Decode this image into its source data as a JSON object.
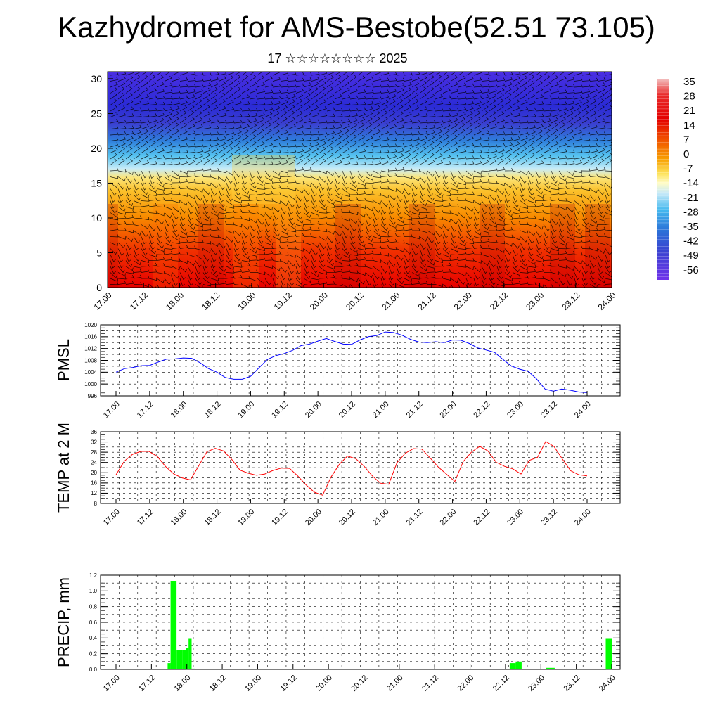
{
  "title": "Kazhydromet for AMS-Bestobe(52.51 73.105)",
  "subtitle": "17 ☆☆☆☆☆☆☆☆ 2025",
  "colors": {
    "pmsl_line": "#0000ff",
    "temp_line": "#ff0000",
    "precip_bar": "#00ff00",
    "colorbar": [
      "#f3c1c1",
      "#e92a2a",
      "#e40000",
      "#ee3e00",
      "#f57a00",
      "#fbb218",
      "#fee95a",
      "#fffcc8",
      "#c6e9f8",
      "#55c1f0",
      "#23a5e6",
      "#2b74d8",
      "#3a42d1",
      "#4a20d8",
      "#6a2de8"
    ]
  },
  "chart_data": [
    {
      "type": "heatmap",
      "title": "Kazhydromet for AMS-Bestobe(52.51 73.105)",
      "subtitle": "17 ☆☆☆☆☆☆☆☆ 2025",
      "x_ticks": [
        "17.00",
        "17.12",
        "18.00",
        "18.12",
        "19.00",
        "19.12",
        "20.00",
        "20.12",
        "21.00",
        "21.12",
        "22.00",
        "22.12",
        "23.00",
        "23.12",
        "24.00"
      ],
      "y_ticks": [
        0,
        5,
        10,
        15,
        20,
        25,
        30
      ],
      "ylim": [
        0,
        31
      ],
      "colorbar_levels": [
        35,
        28,
        21,
        14,
        7,
        0,
        -7,
        -14,
        -21,
        -28,
        -35,
        -42,
        -49,
        -56
      ],
      "overlay": "wind barbs"
    },
    {
      "type": "line",
      "ylabel": "PMSL",
      "x_ticks": [
        "17.00",
        "17.12",
        "18.00",
        "18.12",
        "19.00",
        "19.12",
        "20.00",
        "20.12",
        "21.00",
        "21.12",
        "22.00",
        "22.12",
        "23.00",
        "23.12",
        "24.00"
      ],
      "y_ticks": [
        996,
        1000,
        1004,
        1008,
        1012,
        1016,
        1020
      ],
      "ylim": [
        996,
        1020
      ],
      "grid": true,
      "values": [
        1004,
        1005.2,
        1005.6,
        1006.2,
        1006.3,
        1007.4,
        1008.4,
        1008.5,
        1008.8,
        1008.7,
        1007.2,
        1005.2,
        1004,
        1002.2,
        1001.6,
        1001.6,
        1002.6,
        1005.5,
        1008.3,
        1009.6,
        1010.3,
        1011.4,
        1013,
        1013.5,
        1014.5,
        1015.4,
        1014.4,
        1013.5,
        1013.4,
        1014.9,
        1016,
        1016.4,
        1017.6,
        1017.4,
        1016.5,
        1015.1,
        1014.2,
        1014,
        1014.3,
        1014,
        1014.9,
        1014.8,
        1013.7,
        1012.2,
        1011.5,
        1010.7,
        1008.3,
        1006.1,
        1005,
        1004.3,
        1001.7,
        998.3,
        997.6,
        998.3,
        997.9,
        997.3,
        997.1
      ]
    },
    {
      "type": "line",
      "ylabel": "TEMP at 2 M",
      "x_ticks": [
        "17.00",
        "17.12",
        "18.00",
        "18.12",
        "19.00",
        "19.12",
        "20.00",
        "20.12",
        "21.00",
        "21.12",
        "22.00",
        "22.12",
        "23.00",
        "23.12",
        "24.00"
      ],
      "y_ticks": [
        8,
        12,
        16,
        20,
        24,
        28,
        32,
        36
      ],
      "ylim": [
        8,
        36
      ],
      "grid": true,
      "values": [
        19.2,
        24.5,
        27.2,
        28.3,
        28.3,
        26.3,
        22.4,
        19.5,
        18,
        17.2,
        22.6,
        28.2,
        29.5,
        28.5,
        25.2,
        21,
        19.8,
        19,
        19.5,
        20.9,
        21.8,
        21.7,
        18.7,
        15.2,
        12.4,
        11.2,
        18.2,
        23.2,
        26.5,
        25.5,
        22.6,
        18.8,
        15.9,
        15.5,
        23.9,
        27.6,
        29.4,
        29.2,
        25.8,
        22.2,
        19.4,
        16.6,
        24.3,
        28,
        30.3,
        28.5,
        24.1,
        22.5,
        21.5,
        19.5,
        24.8,
        26,
        32.2,
        30.2,
        25.4,
        20.8,
        19.2,
        18.8
      ]
    },
    {
      "type": "bar",
      "ylabel": "PRECIP, mm",
      "x_ticks": [
        "17.00",
        "17.12",
        "18.00",
        "18.12",
        "19.00",
        "19.12",
        "20.00",
        "20.12",
        "21.00",
        "21.12",
        "22.00",
        "22.12",
        "23.00",
        "23.12",
        "24.00"
      ],
      "y_ticks": [
        0.0,
        0.2,
        0.4,
        0.6,
        0.8,
        1.0,
        1.2
      ],
      "ylim": [
        0,
        1.2
      ],
      "grid": true,
      "bars": [
        {
          "start": 20,
          "end": 21,
          "value": 0.08
        },
        {
          "start": 21,
          "end": 23,
          "value": 1.12
        },
        {
          "start": 23,
          "end": 24,
          "value": 0.25
        },
        {
          "start": 24,
          "end": 25,
          "value": 0.25
        },
        {
          "start": 25,
          "end": 26,
          "value": 0.25
        },
        {
          "start": 26,
          "end": 27,
          "value": 0.27
        },
        {
          "start": 27,
          "end": 28,
          "value": 0.39
        },
        {
          "start": 28,
          "end": 29,
          "value": 0.01
        },
        {
          "start": 134,
          "end": 136,
          "value": 0.08
        },
        {
          "start": 136,
          "end": 138,
          "value": 0.1
        },
        {
          "start": 146,
          "end": 149,
          "value": 0.02
        },
        {
          "start": 166,
          "end": 168,
          "value": 0.39
        }
      ]
    }
  ]
}
